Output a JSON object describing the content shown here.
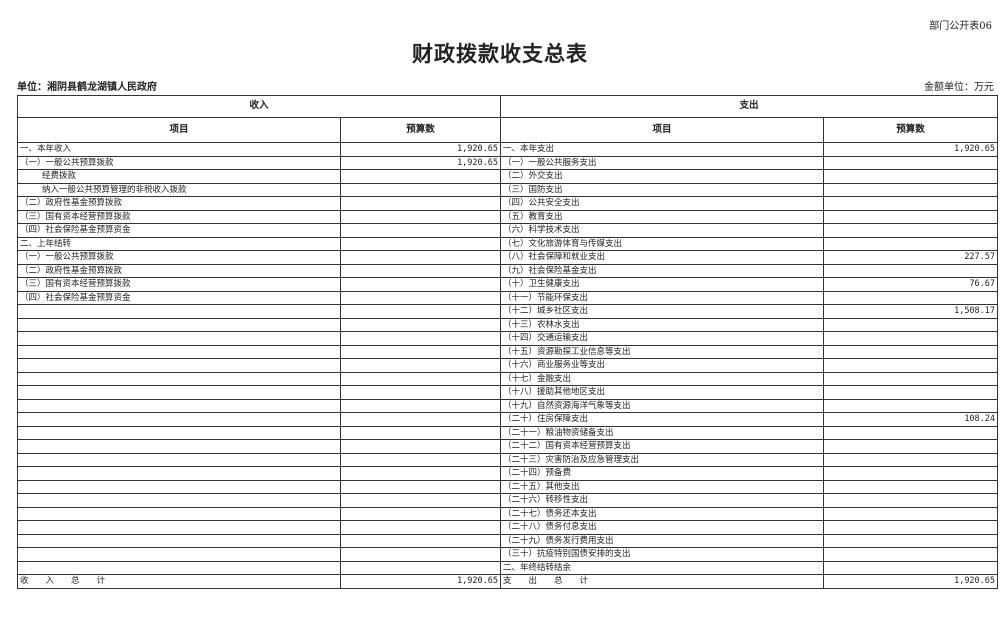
{
  "form_code": "部门公开表06",
  "title": "财政拨款收支总表",
  "unit_label": "单位：湘阴县鹤龙湖镇人民政府",
  "money_unit": "金额单位：万元",
  "headers": {
    "income": "收入",
    "expense": "支出",
    "item": "项目",
    "budget": "预算数"
  },
  "income": {
    "rows": [
      {
        "item": "一、本年收入",
        "value": "1,920.65"
      },
      {
        "item": "（一）一般公共预算拨款",
        "value": "1,920.65"
      },
      {
        "item": "经费拨款",
        "value": "",
        "indent": true
      },
      {
        "item": "纳入一般公共预算管理的非税收入拨款",
        "value": "",
        "indent": true
      },
      {
        "item": "（二）政府性基金预算拨款",
        "value": ""
      },
      {
        "item": "（三）国有资本经营预算拨款",
        "value": ""
      },
      {
        "item": "（四）社会保险基金预算资金",
        "value": ""
      },
      {
        "item": "二、上年结转",
        "value": ""
      },
      {
        "item": "（一）一般公共预算拨款",
        "value": ""
      },
      {
        "item": "（二）政府性基金预算拨款",
        "value": ""
      },
      {
        "item": "（三）国有资本经营预算拨款",
        "value": ""
      },
      {
        "item": "（四）社会保险基金预算资金",
        "value": ""
      }
    ],
    "total_label": "收　　入　　总　　计",
    "total_value": "1,920.65"
  },
  "expense": {
    "rows": [
      {
        "item": "一、本年支出",
        "value": "1,920.65"
      },
      {
        "item": "（一）一般公共服务支出",
        "value": ""
      },
      {
        "item": "（二）外交支出",
        "value": ""
      },
      {
        "item": "（三）国防支出",
        "value": ""
      },
      {
        "item": "（四）公共安全支出",
        "value": ""
      },
      {
        "item": "（五）教育支出",
        "value": ""
      },
      {
        "item": "（六）科学技术支出",
        "value": ""
      },
      {
        "item": "（七）文化旅游体育与传媒支出",
        "value": ""
      },
      {
        "item": "（八）社会保障和就业支出",
        "value": "227.57"
      },
      {
        "item": "（九）社会保险基金支出",
        "value": ""
      },
      {
        "item": "（十）卫生健康支出",
        "value": "76.67"
      },
      {
        "item": "（十一）节能环保支出",
        "value": ""
      },
      {
        "item": "（十二）城乡社区支出",
        "value": "1,508.17"
      },
      {
        "item": "（十三）农林水支出",
        "value": ""
      },
      {
        "item": "（十四）交通运输支出",
        "value": ""
      },
      {
        "item": "（十五）资源勘探工业信息等支出",
        "value": ""
      },
      {
        "item": "（十六）商业服务业等支出",
        "value": ""
      },
      {
        "item": "（十七）金融支出",
        "value": ""
      },
      {
        "item": "（十八）援助其他地区支出",
        "value": ""
      },
      {
        "item": "（十九）自然资源海洋气象等支出",
        "value": ""
      },
      {
        "item": "（二十）住房保障支出",
        "value": "108.24"
      },
      {
        "item": "（二十一）粮油物资储备支出",
        "value": ""
      },
      {
        "item": "（二十二）国有资本经营预算支出",
        "value": ""
      },
      {
        "item": "（二十三）灾害防治及应急管理支出",
        "value": ""
      },
      {
        "item": "（二十四）预备费",
        "value": ""
      },
      {
        "item": "（二十五）其他支出",
        "value": ""
      },
      {
        "item": "（二十六）转移性支出",
        "value": ""
      },
      {
        "item": "（二十七）债务还本支出",
        "value": ""
      },
      {
        "item": "（二十八）债务付息支出",
        "value": ""
      },
      {
        "item": "（二十九）债务发行费用支出",
        "value": ""
      },
      {
        "item": "（三十）抗疫特别国债安排的支出",
        "value": ""
      },
      {
        "item": "二、年终结转结余",
        "value": ""
      }
    ],
    "total_label": "支　　出　　总　　计",
    "total_value": "1,920.65"
  }
}
